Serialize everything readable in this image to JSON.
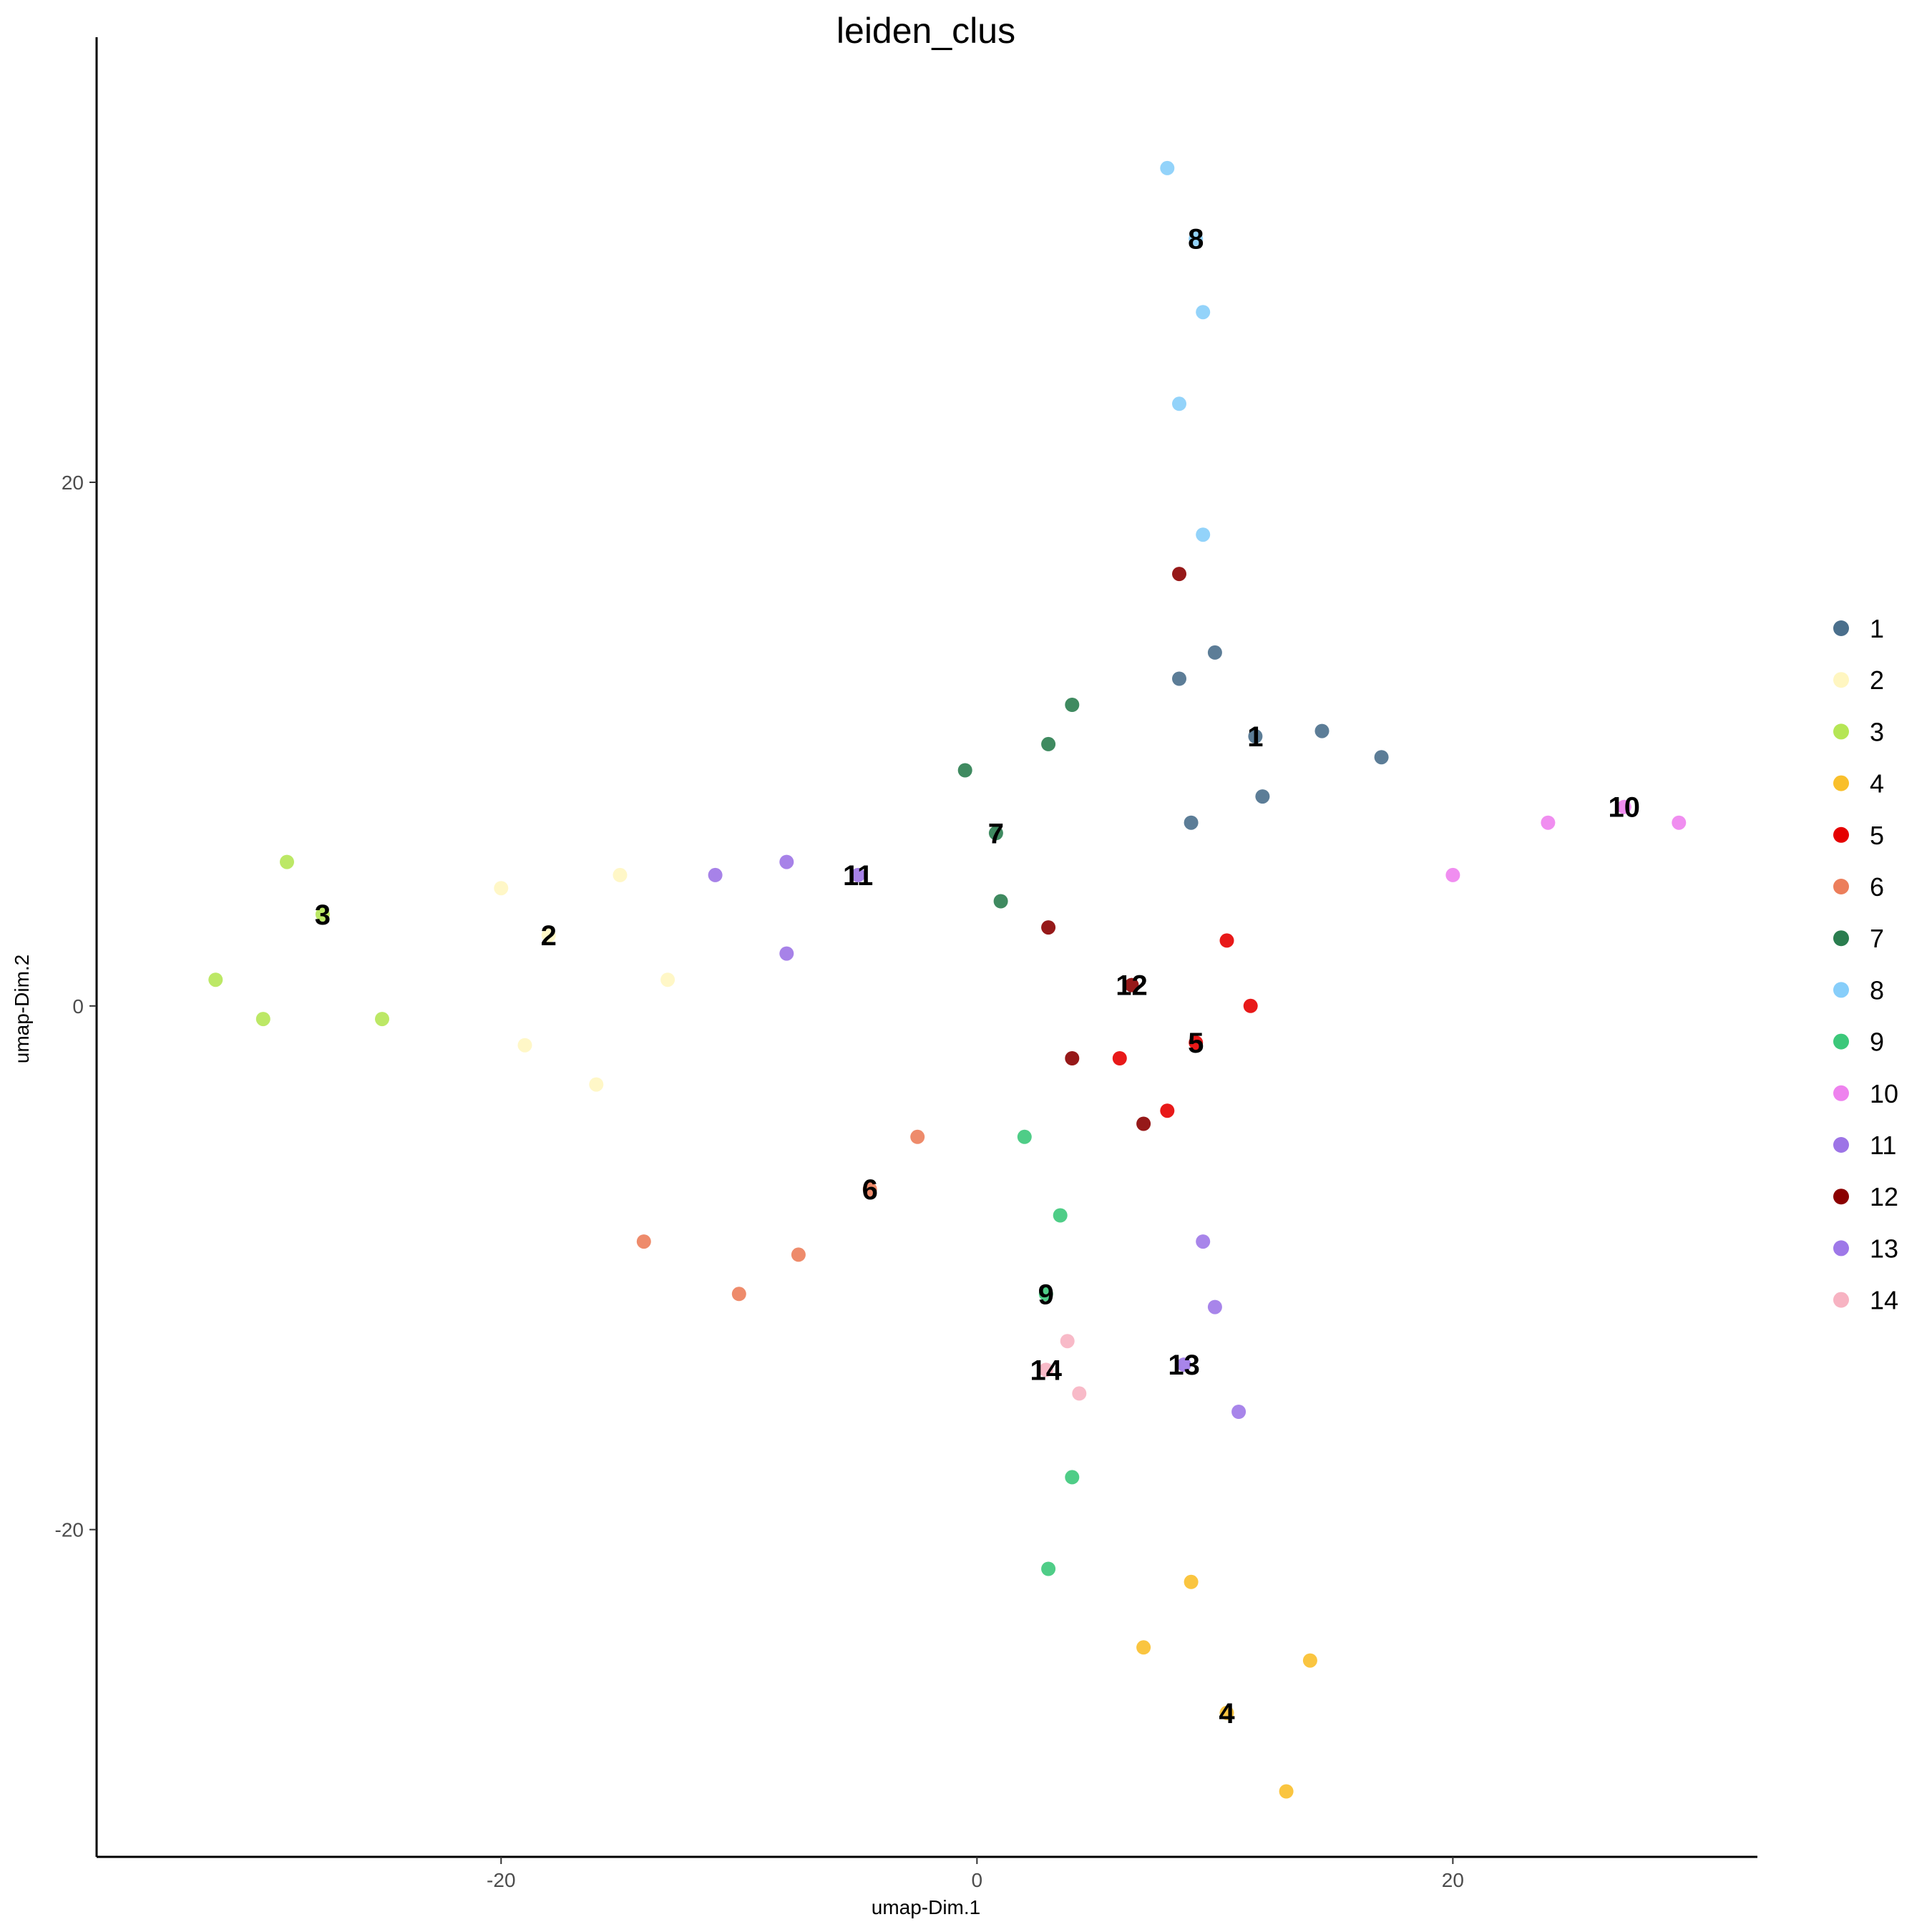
{
  "chart_data": {
    "type": "scatter",
    "title": "leiden_clus",
    "xlabel": "umap-Dim.1",
    "ylabel": "umap-Dim.2",
    "xlim": [
      -37.0,
      32.8
    ],
    "ylim": [
      -32.5,
      37.0
    ],
    "x_ticks": [
      -20,
      0,
      20
    ],
    "y_ticks": [
      -20,
      0,
      20
    ],
    "x_tick_labels": [
      "-20",
      "0",
      "20"
    ],
    "y_tick_labels": [
      "-20",
      "0",
      "20"
    ],
    "grid": false,
    "legend_position": "right",
    "series": [
      {
        "name": "1",
        "color": "#4A6F8C",
        "centroid": [
          11.7,
          10.3
        ],
        "points": [
          [
            11.7,
            10.3
          ],
          [
            8.5,
            12.5
          ],
          [
            14.5,
            10.5
          ],
          [
            17,
            9.5
          ],
          [
            10,
            13.5
          ],
          [
            12,
            8
          ],
          [
            9,
            7
          ]
        ]
      },
      {
        "name": "2",
        "color": "#FFF6C1",
        "centroid": [
          -18.0,
          2.7
        ],
        "points": [
          [
            -18,
            2.7
          ],
          [
            -20,
            4.5
          ],
          [
            -15,
            5
          ],
          [
            -19,
            -1.5
          ],
          [
            -16,
            -3
          ],
          [
            -13,
            1
          ]
        ]
      },
      {
        "name": "3",
        "color": "#B5E655",
        "centroid": [
          -27.5,
          3.5
        ],
        "points": [
          [
            -27.5,
            3.5
          ],
          [
            -32,
            1
          ],
          [
            -29,
            5.5
          ],
          [
            -25,
            -0.5
          ],
          [
            -30,
            -0.5
          ]
        ]
      },
      {
        "name": "4",
        "color": "#F9BF2B",
        "centroid": [
          10.5,
          -27.0
        ],
        "points": [
          [
            10.5,
            -27
          ],
          [
            13,
            -30
          ],
          [
            9,
            -22
          ],
          [
            14,
            -25
          ],
          [
            7,
            -24.5
          ]
        ]
      },
      {
        "name": "5",
        "color": "#E50000",
        "centroid": [
          9.2,
          -1.4
        ],
        "points": [
          [
            9.2,
            -1.4
          ],
          [
            11.5,
            0
          ],
          [
            8,
            -4
          ],
          [
            10.5,
            2.5
          ],
          [
            6,
            -2
          ]
        ]
      },
      {
        "name": "6",
        "color": "#EC7E5B",
        "centroid": [
          -4.5,
          -7.0
        ],
        "points": [
          [
            -4.5,
            -7
          ],
          [
            -7.5,
            -9.5
          ],
          [
            -10,
            -11
          ],
          [
            -2.5,
            -5
          ],
          [
            -14,
            -9
          ]
        ]
      },
      {
        "name": "7",
        "color": "#2A7D4F",
        "centroid": [
          0.8,
          6.6
        ],
        "points": [
          [
            0.8,
            6.6
          ],
          [
            -0.5,
            9
          ],
          [
            3,
            10
          ],
          [
            1,
            4
          ],
          [
            4,
            11.5
          ]
        ]
      },
      {
        "name": "8",
        "color": "#87CEFA",
        "centroid": [
          9.2,
          29.3
        ],
        "points": [
          [
            9.2,
            29.3
          ],
          [
            8,
            32
          ],
          [
            9.5,
            26.5
          ],
          [
            8.5,
            23
          ],
          [
            9.5,
            18
          ]
        ]
      },
      {
        "name": "9",
        "color": "#3CC87A",
        "centroid": [
          2.9,
          -11.0
        ],
        "points": [
          [
            2.9,
            -11
          ],
          [
            3.5,
            -8
          ],
          [
            4,
            -18
          ],
          [
            3,
            -21.5
          ],
          [
            2,
            -5
          ]
        ]
      },
      {
        "name": "10",
        "color": "#EE82EE",
        "centroid": [
          27.2,
          7.6
        ],
        "points": [
          [
            27.2,
            7.6
          ],
          [
            24,
            7
          ],
          [
            29.5,
            7
          ],
          [
            20,
            5
          ]
        ]
      },
      {
        "name": "11",
        "color": "#9D74E6",
        "centroid": [
          -5.0,
          5.0
        ],
        "points": [
          [
            -5,
            5
          ],
          [
            -8,
            5.5
          ],
          [
            -11,
            5
          ],
          [
            -8,
            2
          ]
        ]
      },
      {
        "name": "12",
        "color": "#8B0000",
        "centroid": [
          6.5,
          0.8
        ],
        "points": [
          [
            6.5,
            0.8
          ],
          [
            4,
            -2
          ],
          [
            7,
            -4.5
          ],
          [
            8.5,
            16.5
          ],
          [
            3,
            3
          ]
        ]
      },
      {
        "name": "13",
        "color": "#9E78E8",
        "centroid": [
          8.7,
          -13.7
        ],
        "points": [
          [
            8.7,
            -13.7
          ],
          [
            10,
            -11.5
          ],
          [
            11,
            -15.5
          ],
          [
            9.5,
            -9
          ]
        ]
      },
      {
        "name": "14",
        "color": "#F7B3C2",
        "centroid": [
          2.9,
          -13.9
        ],
        "points": [
          [
            2.9,
            -13.9
          ],
          [
            3.8,
            -12.8
          ],
          [
            4.3,
            -14.8
          ]
        ]
      }
    ]
  }
}
